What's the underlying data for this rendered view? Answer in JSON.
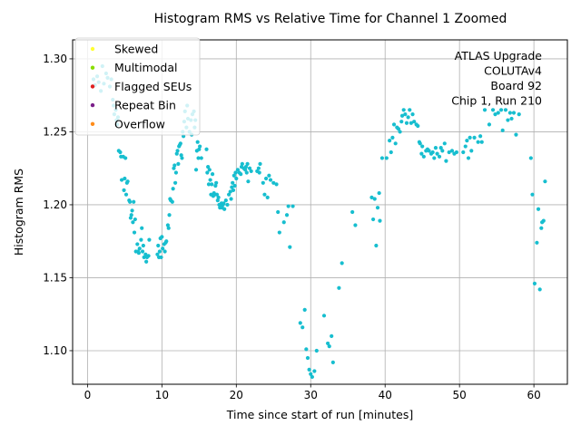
{
  "chart_data": {
    "type": "scatter",
    "title": "Histogram RMS vs Relative Time for Channel 1 Zoomed",
    "xlabel": "Time since start of run [minutes]",
    "ylabel": "Histogram RMS",
    "xlim": [
      -2,
      64.5
    ],
    "ylim": [
      1.077,
      1.313
    ],
    "xticks": [
      0,
      10,
      20,
      30,
      40,
      50,
      60
    ],
    "yticks": [
      1.1,
      1.15,
      1.2,
      1.25,
      1.3
    ],
    "xtick_labels": [
      "0",
      "10",
      "20",
      "30",
      "40",
      "50",
      "60"
    ],
    "ytick_labels": [
      "1.10",
      "1.15",
      "1.20",
      "1.25",
      "1.30"
    ],
    "grid": true,
    "legend_position": "top-left",
    "legend": [
      {
        "label": "Skewed",
        "color": "#ffff33"
      },
      {
        "label": "Multimodal",
        "color": "#88dd00"
      },
      {
        "label": "Flagged SEUs",
        "color": "#e02020"
      },
      {
        "label": "Repeat Bin",
        "color": "#7b1f8a"
      },
      {
        "label": "Overflow",
        "color": "#ff8c1a"
      }
    ],
    "annotation": [
      "ATLAS Upgrade",
      "COLUTAv4",
      "Board 92",
      "Chip 1, Run 210"
    ],
    "series": [
      {
        "color": "#17becf",
        "points": [
          [
            0.8,
            1.286
          ],
          [
            1.0,
            1.282
          ],
          [
            1.3,
            1.288
          ],
          [
            1.5,
            1.284
          ],
          [
            1.8,
            1.278
          ],
          [
            2.0,
            1.295
          ],
          [
            2.2,
            1.283
          ],
          [
            2.5,
            1.29
          ],
          [
            2.7,
            1.287
          ],
          [
            3.0,
            1.281
          ],
          [
            3.2,
            1.286
          ],
          [
            3.4,
            1.272
          ],
          [
            3.5,
            1.268
          ],
          [
            3.6,
            1.262
          ],
          [
            3.8,
            1.265
          ],
          [
            3.9,
            1.258
          ],
          [
            4.0,
            1.255
          ],
          [
            4.1,
            1.26
          ],
          [
            4.2,
            1.237
          ],
          [
            4.4,
            1.236
          ],
          [
            4.5,
            1.233
          ],
          [
            4.6,
            1.217
          ],
          [
            4.8,
            1.233
          ],
          [
            4.9,
            1.21
          ],
          [
            5.0,
            1.218
          ],
          [
            5.1,
            1.232
          ],
          [
            5.2,
            1.207
          ],
          [
            5.3,
            1.215
          ],
          [
            5.4,
            1.216
          ],
          [
            5.6,
            1.203
          ],
          [
            5.7,
            1.202
          ],
          [
            5.8,
            1.191
          ],
          [
            5.9,
            1.193
          ],
          [
            6.0,
            1.196
          ],
          [
            6.1,
            1.188
          ],
          [
            6.2,
            1.202
          ],
          [
            6.3,
            1.181
          ],
          [
            6.4,
            1.19
          ],
          [
            6.5,
            1.168
          ],
          [
            6.7,
            1.173
          ],
          [
            6.8,
            1.168
          ],
          [
            6.9,
            1.167
          ],
          [
            7.0,
            1.17
          ],
          [
            7.2,
            1.176
          ],
          [
            7.3,
            1.184
          ],
          [
            7.4,
            1.168
          ],
          [
            7.5,
            1.172
          ],
          [
            7.6,
            1.164
          ],
          [
            7.8,
            1.166
          ],
          [
            7.9,
            1.161
          ],
          [
            8.0,
            1.164
          ],
          [
            8.2,
            1.165
          ],
          [
            8.3,
            1.176
          ],
          [
            9.4,
            1.166
          ],
          [
            9.5,
            1.172
          ],
          [
            9.6,
            1.164
          ],
          [
            9.7,
            1.168
          ],
          [
            9.8,
            1.177
          ],
          [
            9.9,
            1.164
          ],
          [
            10.0,
            1.178
          ],
          [
            10.1,
            1.17
          ],
          [
            10.3,
            1.173
          ],
          [
            10.4,
            1.168
          ],
          [
            10.5,
            1.174
          ],
          [
            10.6,
            1.175
          ],
          [
            10.8,
            1.186
          ],
          [
            10.9,
            1.184
          ],
          [
            11.0,
            1.193
          ],
          [
            11.1,
            1.204
          ],
          [
            11.2,
            1.203
          ],
          [
            11.4,
            1.202
          ],
          [
            11.5,
            1.211
          ],
          [
            11.6,
            1.225
          ],
          [
            11.7,
            1.227
          ],
          [
            11.8,
            1.215
          ],
          [
            11.9,
            1.222
          ],
          [
            12.0,
            1.235
          ],
          [
            12.1,
            1.237
          ],
          [
            12.2,
            1.228
          ],
          [
            12.3,
            1.24
          ],
          [
            12.4,
            1.241
          ],
          [
            12.5,
            1.242
          ],
          [
            12.6,
            1.234
          ],
          [
            12.7,
            1.232
          ],
          [
            12.8,
            1.25
          ],
          [
            12.9,
            1.247
          ],
          [
            13.0,
            1.257
          ],
          [
            13.1,
            1.264
          ],
          [
            13.3,
            1.253
          ],
          [
            13.4,
            1.268
          ],
          [
            13.5,
            1.259
          ],
          [
            13.7,
            1.25
          ],
          [
            13.9,
            1.258
          ],
          [
            14.0,
            1.248
          ],
          [
            14.1,
            1.262
          ],
          [
            14.3,
            1.264
          ],
          [
            14.4,
            1.253
          ],
          [
            14.5,
            1.258
          ],
          [
            14.6,
            1.224
          ],
          [
            14.7,
            1.237
          ],
          [
            14.8,
            1.243
          ],
          [
            14.9,
            1.232
          ],
          [
            15.0,
            1.238
          ],
          [
            15.1,
            1.24
          ],
          [
            15.3,
            1.232
          ],
          [
            16.0,
            1.238
          ],
          [
            16.1,
            1.222
          ],
          [
            16.2,
            1.226
          ],
          [
            16.3,
            1.214
          ],
          [
            16.4,
            1.224
          ],
          [
            16.5,
            1.217
          ],
          [
            16.6,
            1.207
          ],
          [
            16.7,
            1.214
          ],
          [
            16.8,
            1.221
          ],
          [
            16.9,
            1.206
          ],
          [
            17.0,
            1.208
          ],
          [
            17.1,
            1.207
          ],
          [
            17.2,
            1.213
          ],
          [
            17.3,
            1.215
          ],
          [
            17.4,
            1.207
          ],
          [
            17.5,
            1.203
          ],
          [
            17.6,
            1.205
          ],
          [
            17.7,
            1.2
          ],
          [
            17.8,
            1.198
          ],
          [
            17.9,
            1.199
          ],
          [
            18.0,
            1.201
          ],
          [
            18.1,
            1.198
          ],
          [
            18.2,
            1.2
          ],
          [
            18.3,
            1.201
          ],
          [
            18.4,
            1.197
          ],
          [
            18.6,
            1.203
          ],
          [
            18.8,
            1.2
          ],
          [
            19.0,
            1.207
          ],
          [
            19.2,
            1.209
          ],
          [
            19.3,
            1.204
          ],
          [
            19.4,
            1.212
          ],
          [
            19.5,
            1.215
          ],
          [
            19.6,
            1.21
          ],
          [
            19.7,
            1.22
          ],
          [
            19.8,
            1.213
          ],
          [
            19.9,
            1.222
          ],
          [
            20.0,
            1.218
          ],
          [
            20.2,
            1.224
          ],
          [
            20.4,
            1.222
          ],
          [
            20.6,
            1.221
          ],
          [
            20.7,
            1.226
          ],
          [
            20.8,
            1.228
          ],
          [
            21.0,
            1.225
          ],
          [
            21.2,
            1.224
          ],
          [
            21.3,
            1.226
          ],
          [
            21.4,
            1.222
          ],
          [
            21.5,
            1.228
          ],
          [
            21.6,
            1.216
          ],
          [
            21.8,
            1.225
          ],
          [
            22.0,
            1.223
          ],
          [
            22.8,
            1.223
          ],
          [
            23.0,
            1.225
          ],
          [
            23.1,
            1.222
          ],
          [
            23.2,
            1.228
          ],
          [
            23.6,
            1.215
          ],
          [
            23.8,
            1.207
          ],
          [
            24.0,
            1.218
          ],
          [
            24.2,
            1.205
          ],
          [
            24.4,
            1.22
          ],
          [
            24.6,
            1.217
          ],
          [
            25.0,
            1.215
          ],
          [
            25.4,
            1.214
          ],
          [
            25.6,
            1.195
          ],
          [
            25.8,
            1.181
          ],
          [
            26.4,
            1.188
          ],
          [
            26.8,
            1.193
          ],
          [
            27.0,
            1.199
          ],
          [
            27.2,
            1.171
          ],
          [
            27.6,
            1.199
          ],
          [
            28.6,
            1.119
          ],
          [
            28.9,
            1.116
          ],
          [
            29.2,
            1.128
          ],
          [
            29.4,
            1.101
          ],
          [
            29.6,
            1.095
          ],
          [
            29.8,
            1.087
          ],
          [
            30.0,
            1.084
          ],
          [
            30.2,
            1.082
          ],
          [
            30.5,
            1.086
          ],
          [
            30.8,
            1.1
          ],
          [
            31.8,
            1.124
          ],
          [
            32.3,
            1.105
          ],
          [
            32.5,
            1.103
          ],
          [
            32.8,
            1.11
          ],
          [
            33.0,
            1.092
          ],
          [
            33.8,
            1.143
          ],
          [
            34.2,
            1.16
          ],
          [
            35.6,
            1.195
          ],
          [
            36.0,
            1.186
          ],
          [
            38.2,
            1.205
          ],
          [
            38.4,
            1.19
          ],
          [
            38.6,
            1.204
          ],
          [
            38.8,
            1.172
          ],
          [
            39.0,
            1.198
          ],
          [
            39.2,
            1.208
          ],
          [
            39.3,
            1.189
          ],
          [
            39.6,
            1.232
          ],
          [
            40.2,
            1.232
          ],
          [
            40.6,
            1.244
          ],
          [
            40.8,
            1.236
          ],
          [
            41.0,
            1.246
          ],
          [
            41.2,
            1.255
          ],
          [
            41.4,
            1.242
          ],
          [
            41.6,
            1.253
          ],
          [
            41.8,
            1.252
          ],
          [
            42.0,
            1.25
          ],
          [
            42.2,
            1.257
          ],
          [
            42.3,
            1.261
          ],
          [
            42.5,
            1.265
          ],
          [
            42.7,
            1.262
          ],
          [
            42.9,
            1.256
          ],
          [
            43.1,
            1.26
          ],
          [
            43.3,
            1.265
          ],
          [
            43.5,
            1.256
          ],
          [
            43.7,
            1.262
          ],
          [
            43.9,
            1.257
          ],
          [
            44.2,
            1.255
          ],
          [
            44.4,
            1.254
          ],
          [
            44.6,
            1.243
          ],
          [
            44.7,
            1.242
          ],
          [
            44.9,
            1.235
          ],
          [
            45.0,
            1.24
          ],
          [
            45.2,
            1.233
          ],
          [
            45.5,
            1.237
          ],
          [
            45.7,
            1.238
          ],
          [
            45.9,
            1.237
          ],
          [
            46.2,
            1.235
          ],
          [
            46.4,
            1.236
          ],
          [
            46.6,
            1.232
          ],
          [
            46.8,
            1.239
          ],
          [
            47.0,
            1.235
          ],
          [
            47.3,
            1.233
          ],
          [
            47.5,
            1.239
          ],
          [
            47.7,
            1.237
          ],
          [
            48.0,
            1.242
          ],
          [
            48.2,
            1.23
          ],
          [
            48.6,
            1.236
          ],
          [
            49.0,
            1.237
          ],
          [
            49.3,
            1.235
          ],
          [
            49.6,
            1.236
          ],
          [
            50.5,
            1.236
          ],
          [
            50.8,
            1.24
          ],
          [
            51.0,
            1.244
          ],
          [
            51.2,
            1.232
          ],
          [
            51.4,
            1.246
          ],
          [
            51.6,
            1.237
          ],
          [
            52.0,
            1.246
          ],
          [
            52.5,
            1.243
          ],
          [
            52.8,
            1.247
          ],
          [
            53.0,
            1.243
          ],
          [
            53.4,
            1.265
          ],
          [
            54.0,
            1.255
          ],
          [
            54.5,
            1.265
          ],
          [
            54.8,
            1.262
          ],
          [
            55.2,
            1.263
          ],
          [
            55.6,
            1.265
          ],
          [
            55.8,
            1.251
          ],
          [
            56.2,
            1.265
          ],
          [
            56.5,
            1.258
          ],
          [
            56.8,
            1.263
          ],
          [
            57.0,
            1.259
          ],
          [
            57.3,
            1.263
          ],
          [
            57.6,
            1.248
          ],
          [
            58.0,
            1.262
          ],
          [
            59.6,
            1.232
          ],
          [
            59.8,
            1.207
          ],
          [
            60.1,
            1.146
          ],
          [
            60.4,
            1.174
          ],
          [
            60.6,
            1.197
          ],
          [
            60.8,
            1.142
          ],
          [
            61.0,
            1.184
          ],
          [
            61.1,
            1.188
          ],
          [
            61.3,
            1.189
          ],
          [
            61.5,
            1.216
          ]
        ]
      }
    ]
  }
}
